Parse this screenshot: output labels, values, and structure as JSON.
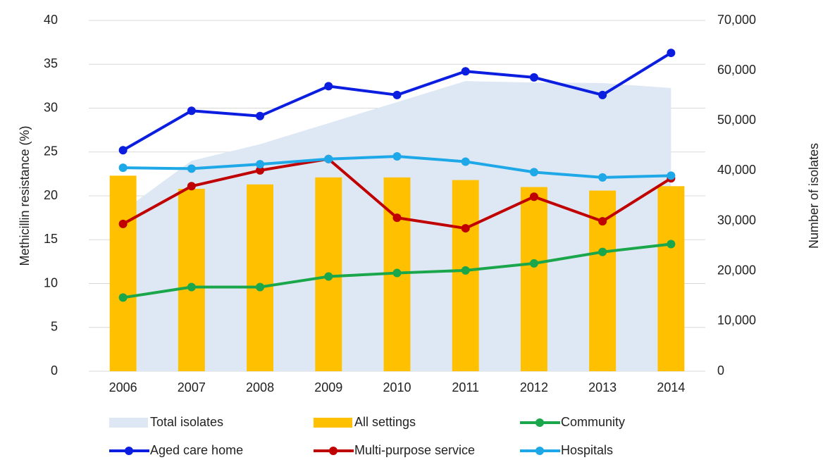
{
  "chart_data": {
    "type": "combo",
    "categories": [
      "2006",
      "2007",
      "2008",
      "2009",
      "2010",
      "2011",
      "2012",
      "2013",
      "2014"
    ],
    "ylabel": "Methicillin resistance (%)",
    "y2label": "Number of isolates",
    "ylim": [
      0,
      40
    ],
    "yticks": [
      0,
      5,
      10,
      15,
      20,
      25,
      30,
      35,
      40
    ],
    "y2lim": [
      0,
      70000
    ],
    "y2ticks": [
      0,
      {
        "value": 10000,
        "label": "10,000"
      },
      {
        "value": 20000,
        "label": "20,000"
      },
      {
        "value": 30000,
        "label": "30,000"
      },
      {
        "value": 40000,
        "label": "40,000"
      },
      {
        "value": 50000,
        "label": "50,000"
      },
      {
        "value": 60000,
        "label": "60,000"
      },
      {
        "value": 70000,
        "label": "70,000"
      }
    ],
    "grid": true,
    "legend": "bottom",
    "series": [
      {
        "name": "Total isolates",
        "type": "area",
        "axis": "y2",
        "color": "#dde8f4",
        "values": [
          32000,
          42000,
          45300,
          49500,
          53700,
          57900,
          57600,
          57500,
          56500
        ]
      },
      {
        "name": "All settings",
        "type": "bar",
        "color": "#ffc000",
        "values": [
          22.3,
          20.8,
          21.3,
          22.1,
          22.1,
          21.8,
          21.0,
          20.6,
          21.1
        ]
      },
      {
        "name": "Community",
        "type": "line",
        "color": "#1aa64a",
        "values": [
          8.4,
          9.6,
          9.6,
          10.8,
          11.2,
          11.5,
          12.3,
          13.6,
          14.5
        ]
      },
      {
        "name": "Aged care home",
        "type": "line",
        "color": "#0b1ee0",
        "values": [
          25.2,
          29.7,
          29.1,
          32.5,
          31.5,
          34.2,
          33.5,
          31.5,
          36.3
        ]
      },
      {
        "name": "Multi-purpose service",
        "type": "line",
        "color": "#c00000",
        "values": [
          16.8,
          21.1,
          22.9,
          24.2,
          17.5,
          16.3,
          19.9,
          17.1,
          22.0
        ]
      },
      {
        "name": "Hospitals",
        "type": "line",
        "color": "#1ea8e8",
        "values": [
          23.2,
          23.1,
          23.6,
          24.2,
          24.5,
          23.9,
          22.7,
          22.1,
          22.3
        ]
      }
    ]
  }
}
